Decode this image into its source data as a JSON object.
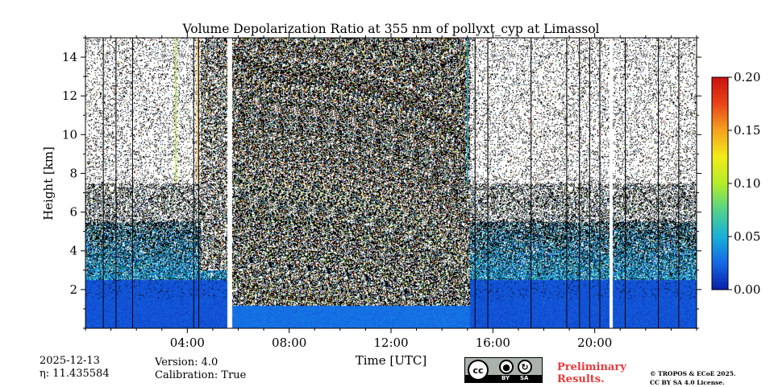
{
  "chart_data": {
    "type": "heatmap",
    "title": "Volume Depolarization Ratio at 355 nm of pollyxt_cyp at Limassol",
    "xlabel": "Time [UTC]",
    "ylabel": "Height [km]",
    "xlim_hours": [
      0,
      24
    ],
    "ylim_km": [
      0,
      15
    ],
    "x_ticks": [
      {
        "hour": 4,
        "label": "04:00"
      },
      {
        "hour": 8,
        "label": "08:00"
      },
      {
        "hour": 12,
        "label": "12:00"
      },
      {
        "hour": 16,
        "label": "16:00"
      },
      {
        "hour": 20,
        "label": "20:00"
      }
    ],
    "y_ticks": [
      {
        "km": 2,
        "label": "2"
      },
      {
        "km": 4,
        "label": "4"
      },
      {
        "km": 6,
        "label": "6"
      },
      {
        "km": 8,
        "label": "8"
      },
      {
        "km": 10,
        "label": "10"
      },
      {
        "km": 12,
        "label": "12"
      },
      {
        "km": 14,
        "label": "14"
      }
    ],
    "colorbar": {
      "range": [
        0.0,
        0.2
      ],
      "ticks": [
        {
          "value": 0.0,
          "label": "0.00"
        },
        {
          "value": 0.05,
          "label": "0.05"
        },
        {
          "value": 0.1,
          "label": "0.10"
        },
        {
          "value": 0.15,
          "label": "0.15"
        },
        {
          "value": 0.2,
          "label": "0.20"
        }
      ],
      "colormap": [
        "#0a1ea8",
        "#1568e6",
        "#18b0d8",
        "#52d28a",
        "#b4ec2a",
        "#f2ec18",
        "#f4a21e",
        "#ea4418",
        "#c81010"
      ]
    },
    "features": {
      "data_gaps_hours": [
        [
          5.55,
          5.75
        ],
        [
          20.55,
          20.7
        ]
      ],
      "low_depol_layer_top_km": 2.5,
      "aerosol_layer_top_km": 5.5,
      "noisy_daytime_hours": [
        5.75,
        15.1
      ],
      "noisy_daytime_edge_hours": [
        4.5,
        5.55
      ],
      "vertical_artifact_lines_hours": [
        0.7,
        1.2,
        1.85,
        4.25,
        4.45,
        15.3,
        15.8,
        17.5,
        18.9,
        19.4,
        19.8,
        20.2,
        21.2,
        22.5,
        23.3
      ],
      "colored_artifact_lines": [
        {
          "hour": 3.55,
          "color": "#b4ec2a"
        },
        {
          "hour": 4.4,
          "color": "#f4a21e"
        },
        {
          "hour": 15.0,
          "color": "#18b0d8"
        }
      ]
    }
  },
  "meta": {
    "date": "2025-12-13",
    "eta_label": "η: 11.435584",
    "version": "Version: 4.0",
    "calibration": "Calibration: True"
  },
  "license": {
    "cc_text": "cc",
    "by_text": "BY",
    "sa_text": "SA",
    "preliminary_line1": "Preliminary",
    "preliminary_line2": "Results.",
    "copyright_line1": "© TROPOS & ECoE 2025.",
    "copyright_line2": "CC BY SA 4.0 License."
  },
  "colors": {
    "background": "#ffffff",
    "axis": "#000000",
    "preliminary": "#e8393a"
  }
}
